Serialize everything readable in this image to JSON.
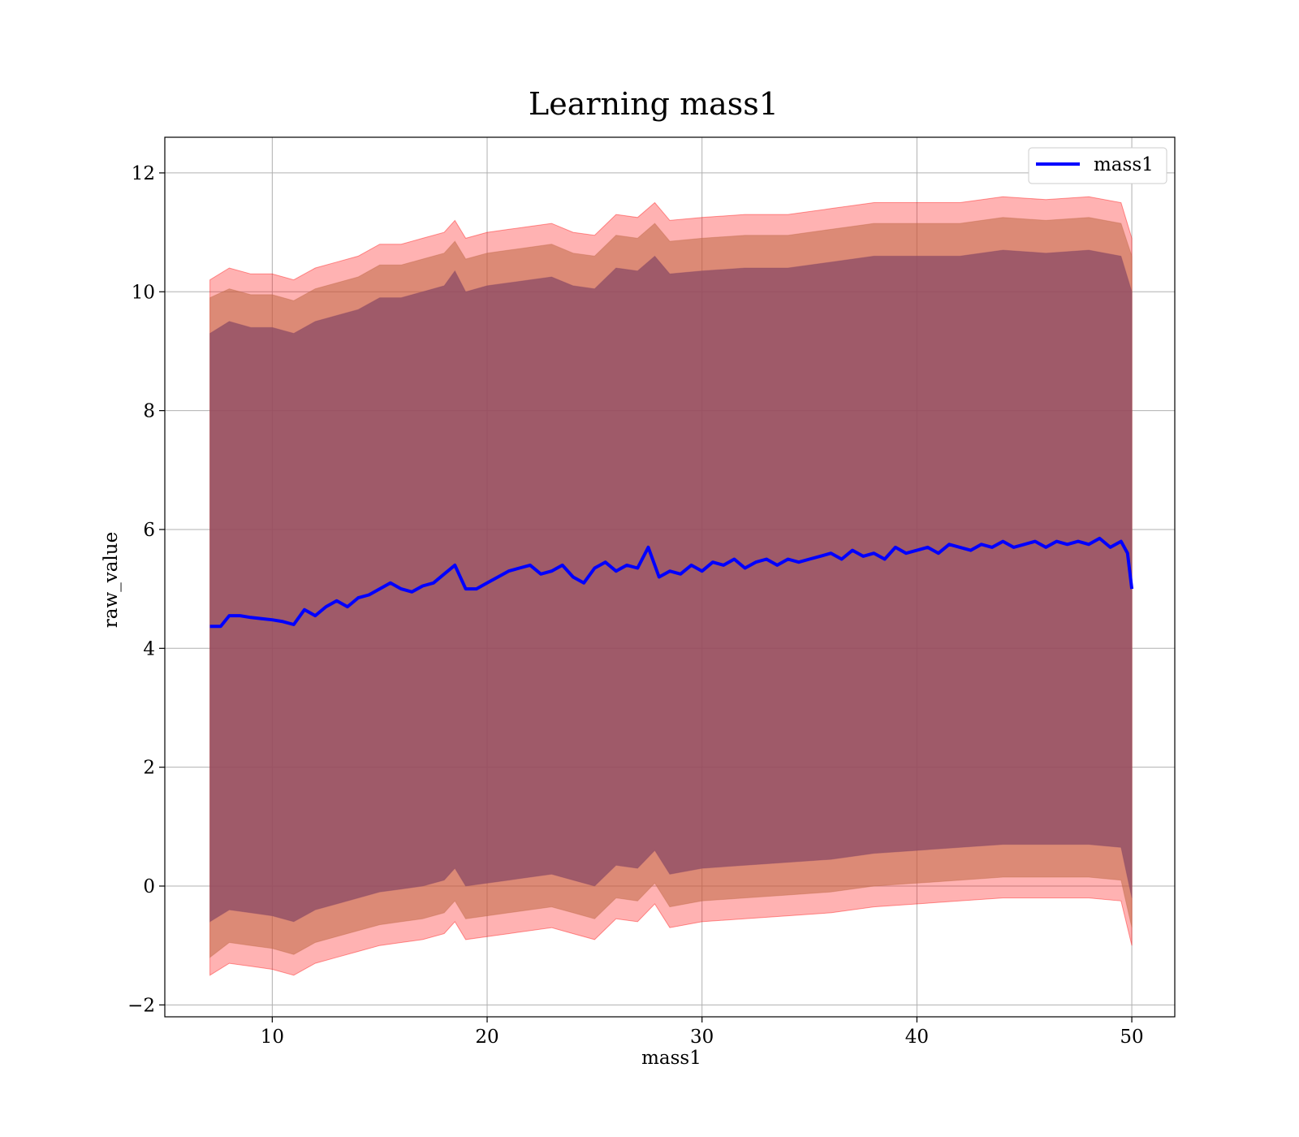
{
  "chart_data": {
    "type": "line",
    "title": "Learning mass1",
    "xlabel": "mass1",
    "ylabel": "raw_value",
    "xlim": [
      5,
      52
    ],
    "ylim": [
      -2.2,
      12.6
    ],
    "xticks": [
      10,
      20,
      30,
      40,
      50
    ],
    "yticks": [
      -2,
      0,
      2,
      4,
      6,
      8,
      10,
      12
    ],
    "grid": true,
    "legend_position": "upper right",
    "colors": {
      "line": "#0000ff",
      "band_outer": "#ff0000",
      "band_middle": "#c06a45",
      "band_inner": "#8b4a66"
    },
    "series": [
      {
        "name": "mass1",
        "x": [
          7.1,
          7.6,
          8.0,
          8.5,
          9.0,
          9.5,
          10.0,
          10.5,
          11.0,
          11.5,
          12.0,
          12.5,
          13.0,
          13.5,
          14.0,
          14.5,
          15.0,
          15.5,
          16.0,
          16.5,
          17.0,
          17.5,
          18.0,
          18.5,
          19.0,
          19.5,
          20.0,
          20.5,
          21.0,
          21.5,
          22.0,
          22.5,
          23.0,
          23.5,
          24.0,
          24.5,
          25.0,
          25.5,
          26.0,
          26.5,
          27.0,
          27.5,
          28.0,
          28.5,
          29.0,
          29.5,
          30.0,
          30.5,
          31.0,
          31.5,
          32.0,
          32.5,
          33.0,
          33.5,
          34.0,
          34.5,
          35.0,
          35.5,
          36.0,
          36.5,
          37.0,
          37.5,
          38.0,
          38.5,
          39.0,
          39.5,
          40.0,
          40.5,
          41.0,
          41.5,
          42.0,
          42.5,
          43.0,
          43.5,
          44.0,
          44.5,
          45.0,
          45.5,
          46.0,
          46.5,
          47.0,
          47.5,
          48.0,
          48.5,
          49.0,
          49.5,
          49.8,
          50.0
        ],
        "values": [
          4.37,
          4.37,
          4.55,
          4.55,
          4.52,
          4.5,
          4.48,
          4.45,
          4.4,
          4.65,
          4.55,
          4.7,
          4.8,
          4.7,
          4.85,
          4.9,
          5.0,
          5.1,
          5.0,
          4.95,
          5.05,
          5.1,
          5.25,
          5.4,
          5.0,
          5.0,
          5.1,
          5.2,
          5.3,
          5.35,
          5.4,
          5.25,
          5.3,
          5.4,
          5.2,
          5.1,
          5.35,
          5.45,
          5.3,
          5.4,
          5.35,
          5.7,
          5.2,
          5.3,
          5.25,
          5.4,
          5.3,
          5.45,
          5.4,
          5.5,
          5.35,
          5.45,
          5.5,
          5.4,
          5.5,
          5.45,
          5.5,
          5.55,
          5.6,
          5.5,
          5.65,
          5.55,
          5.6,
          5.5,
          5.7,
          5.6,
          5.65,
          5.7,
          5.6,
          5.75,
          5.7,
          5.65,
          5.75,
          5.7,
          5.8,
          5.7,
          5.75,
          5.8,
          5.7,
          5.8,
          5.75,
          5.8,
          5.75,
          5.85,
          5.7,
          5.8,
          5.6,
          5.0
        ]
      }
    ],
    "bands": [
      {
        "color": "#ff0000",
        "x": [
          7.1,
          8.0,
          9.0,
          10.0,
          11.0,
          12.0,
          13.0,
          14.0,
          15.0,
          16.0,
          17.0,
          18.0,
          18.5,
          19.0,
          20.0,
          21.0,
          22.0,
          23.0,
          24.0,
          25.0,
          26.0,
          27.0,
          27.8,
          28.5,
          30.0,
          32.0,
          34.0,
          36.0,
          38.0,
          40.0,
          42.0,
          44.0,
          46.0,
          48.0,
          49.5,
          50.0
        ],
        "upper": [
          10.2,
          10.4,
          10.3,
          10.3,
          10.2,
          10.4,
          10.5,
          10.6,
          10.8,
          10.8,
          10.9,
          11.0,
          11.2,
          10.9,
          11.0,
          11.05,
          11.1,
          11.15,
          11.0,
          10.95,
          11.3,
          11.25,
          11.5,
          11.2,
          11.25,
          11.3,
          11.3,
          11.4,
          11.5,
          11.5,
          11.5,
          11.6,
          11.55,
          11.6,
          11.5,
          10.9
        ],
        "lower": [
          -1.5,
          -1.3,
          -1.35,
          -1.4,
          -1.5,
          -1.3,
          -1.2,
          -1.1,
          -1.0,
          -0.95,
          -0.9,
          -0.8,
          -0.6,
          -0.9,
          -0.85,
          -0.8,
          -0.75,
          -0.7,
          -0.8,
          -0.9,
          -0.55,
          -0.6,
          -0.3,
          -0.7,
          -0.6,
          -0.55,
          -0.5,
          -0.45,
          -0.35,
          -0.3,
          -0.25,
          -0.2,
          -0.2,
          -0.2,
          -0.25,
          -1.0
        ]
      },
      {
        "color": "#c06a45",
        "x": [
          7.1,
          8.0,
          9.0,
          10.0,
          11.0,
          12.0,
          13.0,
          14.0,
          15.0,
          16.0,
          17.0,
          18.0,
          18.5,
          19.0,
          20.0,
          21.0,
          22.0,
          23.0,
          24.0,
          25.0,
          26.0,
          27.0,
          27.8,
          28.5,
          30.0,
          32.0,
          34.0,
          36.0,
          38.0,
          40.0,
          42.0,
          44.0,
          46.0,
          48.0,
          49.5,
          50.0
        ],
        "upper": [
          9.9,
          10.05,
          9.95,
          9.95,
          9.85,
          10.05,
          10.15,
          10.25,
          10.45,
          10.45,
          10.55,
          10.65,
          10.85,
          10.55,
          10.65,
          10.7,
          10.75,
          10.8,
          10.65,
          10.6,
          10.95,
          10.9,
          11.15,
          10.85,
          10.9,
          10.95,
          10.95,
          11.05,
          11.15,
          11.15,
          11.15,
          11.25,
          11.2,
          11.25,
          11.15,
          10.6
        ],
        "lower": [
          -1.2,
          -0.95,
          -1.0,
          -1.05,
          -1.15,
          -0.95,
          -0.85,
          -0.75,
          -0.65,
          -0.6,
          -0.55,
          -0.45,
          -0.25,
          -0.55,
          -0.5,
          -0.45,
          -0.4,
          -0.35,
          -0.45,
          -0.55,
          -0.2,
          -0.25,
          0.05,
          -0.35,
          -0.25,
          -0.2,
          -0.15,
          -0.1,
          0.0,
          0.05,
          0.1,
          0.15,
          0.15,
          0.15,
          0.1,
          -0.7
        ]
      },
      {
        "color": "#8b4a66",
        "x": [
          7.1,
          8.0,
          9.0,
          10.0,
          11.0,
          12.0,
          13.0,
          14.0,
          15.0,
          16.0,
          17.0,
          18.0,
          18.5,
          19.0,
          20.0,
          21.0,
          22.0,
          23.0,
          24.0,
          25.0,
          26.0,
          27.0,
          27.8,
          28.5,
          30.0,
          32.0,
          34.0,
          36.0,
          38.0,
          40.0,
          42.0,
          44.0,
          46.0,
          48.0,
          49.5,
          50.0
        ],
        "upper": [
          9.3,
          9.5,
          9.4,
          9.4,
          9.3,
          9.5,
          9.6,
          9.7,
          9.9,
          9.9,
          10.0,
          10.1,
          10.35,
          10.0,
          10.1,
          10.15,
          10.2,
          10.25,
          10.1,
          10.05,
          10.4,
          10.35,
          10.6,
          10.3,
          10.35,
          10.4,
          10.4,
          10.5,
          10.6,
          10.6,
          10.6,
          10.7,
          10.65,
          10.7,
          10.6,
          10.0
        ],
        "lower": [
          -0.6,
          -0.4,
          -0.45,
          -0.5,
          -0.6,
          -0.4,
          -0.3,
          -0.2,
          -0.1,
          -0.05,
          0.0,
          0.1,
          0.3,
          0.0,
          0.05,
          0.1,
          0.15,
          0.2,
          0.1,
          0.0,
          0.35,
          0.3,
          0.6,
          0.2,
          0.3,
          0.35,
          0.4,
          0.45,
          0.55,
          0.6,
          0.65,
          0.7,
          0.7,
          0.7,
          0.65,
          -0.2
        ]
      }
    ]
  }
}
